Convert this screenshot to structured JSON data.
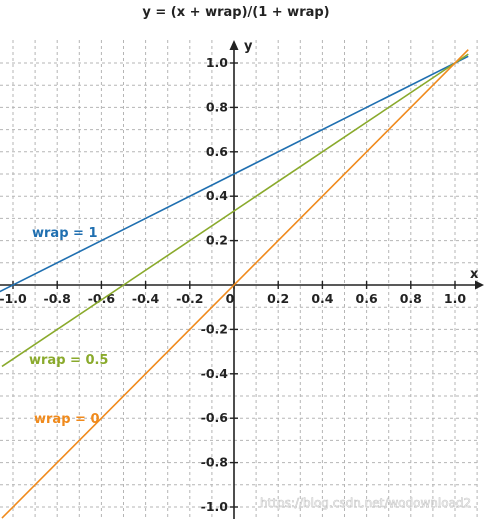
{
  "chart_data": {
    "type": "line",
    "title": "y = (x + wrap)/(1 +  wrap)",
    "xlabel": "x",
    "ylabel": "y",
    "xlim": [
      -1.05,
      1.05
    ],
    "ylim": [
      -1.05,
      1.05
    ],
    "grid": true,
    "x_ticks": [
      -1.0,
      -0.8,
      -0.6,
      -0.4,
      -0.2,
      0,
      0.2,
      0.4,
      0.6,
      0.8,
      1.0
    ],
    "x_tick_labels": [
      "-1.0",
      "-0.8",
      "-0.6",
      "-0.4",
      "-0.2",
      "0",
      "0.2",
      "0.4",
      "0.6",
      "0.8",
      "1.0"
    ],
    "y_ticks": [
      1.0,
      0.8,
      0.6,
      0.4,
      0.2,
      -0.2,
      -0.4,
      -0.6,
      -0.8,
      -1.0
    ],
    "y_tick_labels": [
      "1.0",
      "0.8",
      "0.6",
      "0.4",
      "0.2",
      "-0.2",
      "-0.4",
      "-0.6",
      "-0.8",
      "-1.0"
    ],
    "series": [
      {
        "name": "wrap = 1",
        "wrap": 1,
        "x": [
          -1.1,
          1.06
        ],
        "y": [
          -0.05,
          1.03
        ],
        "color": "#1f6fb0"
      },
      {
        "name": "wrap = 0.5",
        "wrap": 0.5,
        "x": [
          -1.05,
          1.06
        ],
        "y": [
          -0.367,
          1.04
        ],
        "color": "#8aaa2c"
      },
      {
        "name": "wrap = 0",
        "wrap": 0,
        "x": [
          -1.05,
          1.06
        ],
        "y": [
          -1.05,
          1.06
        ],
        "color": "#f08a1c"
      }
    ]
  },
  "labels": {
    "wrap1": "wrap = 1",
    "wrap05": "wrap = 0.5",
    "wrap0": "wrap = 0"
  },
  "watermark": "https://blog.csdn.net/wodownload2"
}
